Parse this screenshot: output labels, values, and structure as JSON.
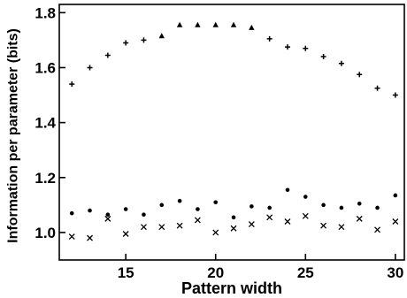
{
  "chart_data": {
    "type": "scatter",
    "title": "",
    "xlabel": "Pattern width",
    "ylabel": "Information per parameter (bits)",
    "xlim": [
      11.3,
      30.5
    ],
    "ylim": [
      0.9,
      1.83
    ],
    "xticks": [
      15,
      20,
      25,
      30
    ],
    "yticks": [
      1.0,
      1.2,
      1.4,
      1.6,
      1.8
    ],
    "xtick_labels": [
      "15",
      "20",
      "25",
      "30"
    ],
    "ytick_labels": [
      "1.0",
      "1.2",
      "1.4",
      "1.6",
      "1.8"
    ],
    "grid": false,
    "legend": "none",
    "series": [
      {
        "marker": "plus",
        "color": "#000000",
        "x": [
          12,
          13,
          14,
          15,
          16,
          23,
          24,
          25,
          26,
          27,
          28,
          29,
          30
        ],
        "y": [
          1.54,
          1.6,
          1.645,
          1.69,
          1.7,
          1.705,
          1.675,
          1.67,
          1.64,
          1.615,
          1.575,
          1.525,
          1.5
        ]
      },
      {
        "marker": "triangle",
        "color": "#000000",
        "x": [
          17,
          18,
          19,
          20,
          21,
          22
        ],
        "y": [
          1.715,
          1.755,
          1.755,
          1.755,
          1.755,
          1.745
        ]
      },
      {
        "marker": "circle",
        "color": "#000000",
        "x": [
          12,
          13,
          14,
          15,
          16,
          17,
          18,
          19,
          20,
          21,
          22,
          23,
          24,
          25,
          26,
          27,
          28,
          29,
          30
        ],
        "y": [
          1.07,
          1.08,
          1.065,
          1.085,
          1.065,
          1.1,
          1.115,
          1.085,
          1.11,
          1.055,
          1.095,
          1.09,
          1.155,
          1.13,
          1.1,
          1.09,
          1.105,
          1.09,
          1.135
        ]
      },
      {
        "marker": "cross",
        "color": "#000000",
        "x": [
          12,
          13,
          14,
          15,
          16,
          17,
          18,
          19,
          20,
          21,
          22,
          23,
          24,
          25,
          26,
          27,
          28,
          29,
          30
        ],
        "y": [
          0.985,
          0.98,
          1.05,
          0.995,
          1.02,
          1.02,
          1.025,
          1.045,
          1.0,
          1.015,
          1.03,
          1.055,
          1.04,
          1.06,
          1.025,
          1.02,
          1.05,
          1.01,
          1.04
        ]
      }
    ]
  }
}
